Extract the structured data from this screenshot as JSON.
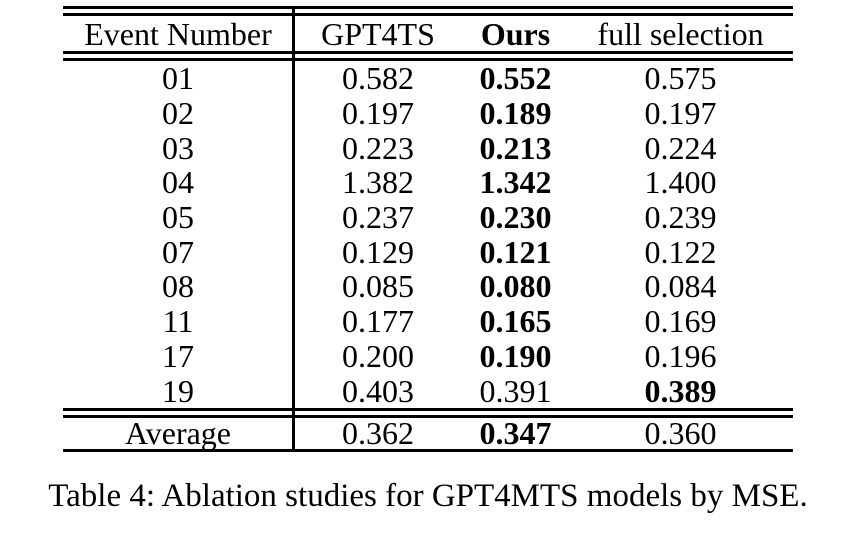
{
  "table": {
    "header": {
      "cells": [
        "Event Number",
        "GPT4TS",
        "Ours",
        "full selection"
      ],
      "bold_index": 2
    },
    "rows": [
      {
        "cells": [
          "01",
          "0.582",
          "0.552",
          "0.575"
        ],
        "bold_index": 2
      },
      {
        "cells": [
          "02",
          "0.197",
          "0.189",
          "0.197"
        ],
        "bold_index": 2
      },
      {
        "cells": [
          "03",
          "0.223",
          "0.213",
          "0.224"
        ],
        "bold_index": 2
      },
      {
        "cells": [
          "04",
          "1.382",
          "1.342",
          "1.400"
        ],
        "bold_index": 2
      },
      {
        "cells": [
          "05",
          "0.237",
          "0.230",
          "0.239"
        ],
        "bold_index": 2
      },
      {
        "cells": [
          "07",
          "0.129",
          "0.121",
          "0.122"
        ],
        "bold_index": 2
      },
      {
        "cells": [
          "08",
          "0.085",
          "0.080",
          "0.084"
        ],
        "bold_index": 2
      },
      {
        "cells": [
          "11",
          "0.177",
          "0.165",
          "0.169"
        ],
        "bold_index": 2
      },
      {
        "cells": [
          "17",
          "0.200",
          "0.190",
          "0.196"
        ],
        "bold_index": 2
      },
      {
        "cells": [
          "19",
          "0.403",
          "0.391",
          "0.389"
        ],
        "bold_index": 3
      }
    ],
    "footer": {
      "cells": [
        "Average",
        "0.362",
        "0.347",
        "0.360"
      ],
      "bold_index": 2
    }
  },
  "caption": "Table 4: Ablation studies for GPT4MTS models by MSE.",
  "colors": {
    "text": "#000000",
    "background": "#ffffff",
    "rule": "#000000"
  }
}
